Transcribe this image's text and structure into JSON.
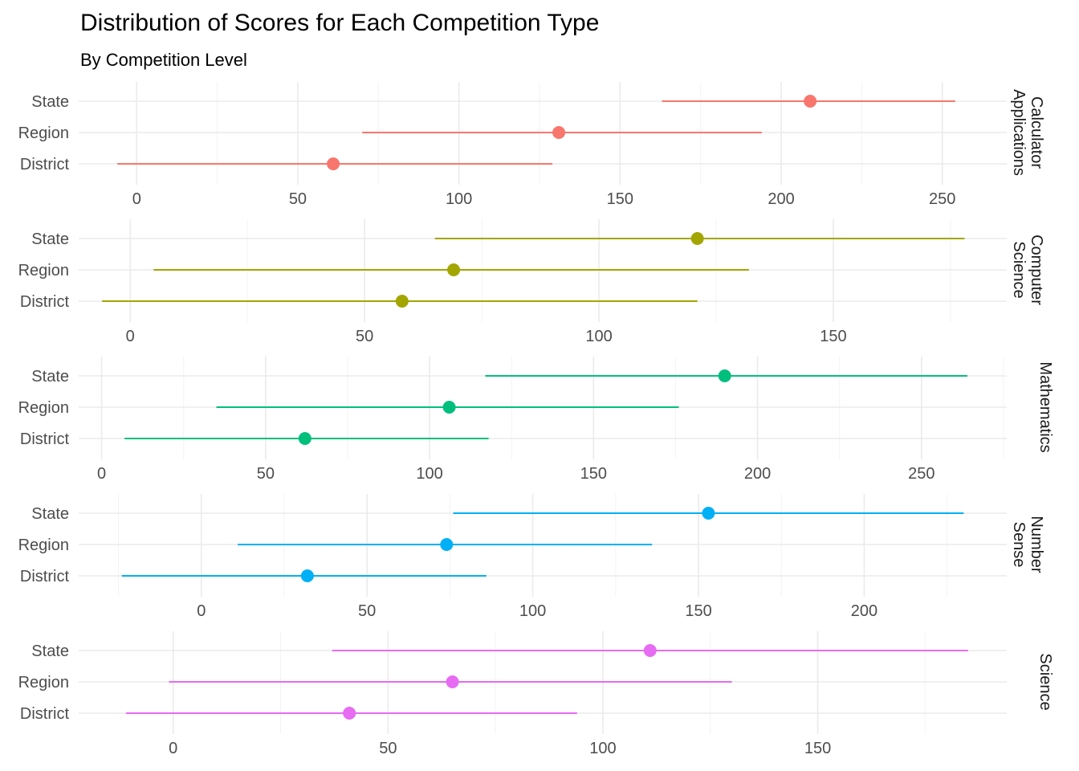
{
  "title": "Distribution of Scores for Each Competition Type",
  "subtitle": "By Competition Level",
  "chart_data": {
    "type": "dot-range",
    "title": "Distribution of Scores for Each Competition Type",
    "subtitle": "By Competition Level",
    "levels": [
      "State",
      "Region",
      "District"
    ],
    "grid": true,
    "facets": [
      {
        "name": "Calculator Applications",
        "strip_lines": [
          "Calculator",
          "Applications"
        ],
        "color": "#F8766D",
        "xticks": [
          0,
          50,
          100,
          150,
          200,
          250
        ],
        "xlim": [
          -18,
          270
        ],
        "rows": [
          {
            "level": "State",
            "min": 163,
            "mean": 209,
            "max": 254
          },
          {
            "level": "Region",
            "min": 70,
            "mean": 131,
            "max": 194
          },
          {
            "level": "District",
            "min": -6,
            "mean": 61,
            "max": 129
          }
        ]
      },
      {
        "name": "Computer Science",
        "strip_lines": [
          "Computer",
          "Science"
        ],
        "color": "#A3A500",
        "xticks": [
          0,
          50,
          100,
          150
        ],
        "xlim": [
          -11,
          187
        ],
        "rows": [
          {
            "level": "State",
            "min": 65,
            "mean": 121,
            "max": 178
          },
          {
            "level": "Region",
            "min": 5,
            "mean": 69,
            "max": 132
          },
          {
            "level": "District",
            "min": -6,
            "mean": 58,
            "max": 121
          }
        ]
      },
      {
        "name": "Mathematics",
        "strip_lines": [
          "Mathematics"
        ],
        "color": "#00BF7D",
        "xticks": [
          0,
          50,
          100,
          150,
          200,
          250
        ],
        "xlim": [
          -7,
          276
        ],
        "rows": [
          {
            "level": "State",
            "min": 117,
            "mean": 190,
            "max": 264
          },
          {
            "level": "Region",
            "min": 35,
            "mean": 106,
            "max": 176
          },
          {
            "level": "District",
            "min": 7,
            "mean": 62,
            "max": 118
          }
        ]
      },
      {
        "name": "Number Sense",
        "strip_lines": [
          "Number",
          "Sense"
        ],
        "color": "#00B0F6",
        "xticks": [
          0,
          50,
          100,
          150,
          200
        ],
        "xlim": [
          -37,
          243
        ],
        "rows": [
          {
            "level": "State",
            "min": 76,
            "mean": 153,
            "max": 230
          },
          {
            "level": "Region",
            "min": 11,
            "mean": 74,
            "max": 136
          },
          {
            "level": "District",
            "min": -24,
            "mean": 32,
            "max": 86
          }
        ]
      },
      {
        "name": "Science",
        "strip_lines": [
          "Science"
        ],
        "color": "#E76BF3",
        "xticks": [
          0,
          50,
          100,
          150
        ],
        "xlim": [
          -22,
          194
        ],
        "rows": [
          {
            "level": "State",
            "min": 37,
            "mean": 111,
            "max": 185
          },
          {
            "level": "Region",
            "min": -1,
            "mean": 65,
            "max": 130
          },
          {
            "level": "District",
            "min": -11,
            "mean": 41,
            "max": 94
          }
        ]
      }
    ]
  }
}
